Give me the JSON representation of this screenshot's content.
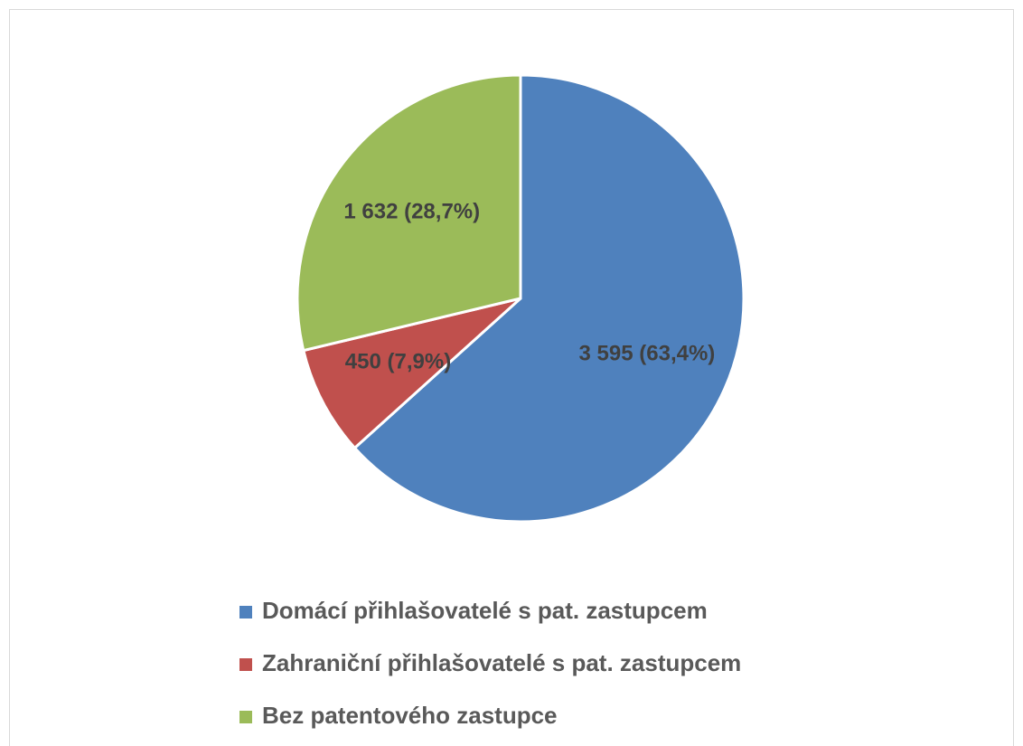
{
  "chart_data": {
    "type": "pie",
    "categories": [
      "Domácí přihlašovatelé s pat. zastupcem",
      "Zahraniční přihlašovatelé s pat. zastupcem",
      "Bez patentového zastupce"
    ],
    "values": [
      3595,
      450,
      1632
    ],
    "value_labels": [
      "3 595 (63,4%)",
      "450 (7,9%)",
      "1 632 (28,7%)"
    ],
    "colors": [
      "#4f81bd",
      "#c0504d",
      "#9bbb59"
    ],
    "legend": "bottom"
  }
}
